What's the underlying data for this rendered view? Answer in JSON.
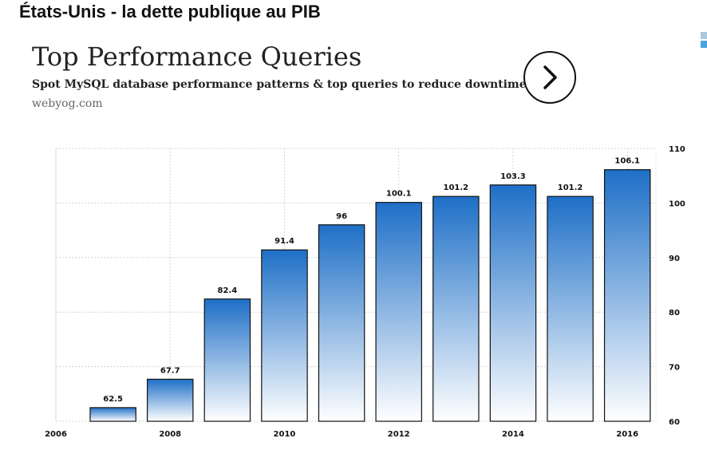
{
  "page": {
    "title": "États-Unis - la dette publique au PIB"
  },
  "ad": {
    "headline": "Top Performance Queries",
    "text": "Spot MySQL database performance patterns & top queries to reduce downtime.",
    "url": "webyog.com",
    "arrow_icon": "chevron-right-icon",
    "choices_icon": "adchoices-icon"
  },
  "colors": {
    "bar_top": "#1e6fc7",
    "bar_bottom": "#ffffff",
    "bar_outline": "#111111",
    "grid": "#d4d4d4"
  },
  "chart_data": {
    "type": "bar",
    "categories": [
      "2007",
      "2008",
      "2009",
      "2010",
      "2011",
      "2012",
      "2013",
      "2014",
      "2015",
      "2016"
    ],
    "values": [
      62.5,
      67.7,
      82.4,
      91.4,
      96,
      100.1,
      101.2,
      103.3,
      101.2,
      106.1
    ],
    "data_labels": [
      "62.5",
      "67.7",
      "82.4",
      "91.4",
      "96",
      "100.1",
      "101.2",
      "103.3",
      "101.2",
      "106.1"
    ],
    "x_ticks": [
      "2006",
      "2008",
      "2010",
      "2012",
      "2014",
      "2016"
    ],
    "xlim": [
      2006,
      2016.5
    ],
    "y_ticks": [
      "60",
      "70",
      "80",
      "90",
      "100",
      "110"
    ],
    "ylim": [
      60,
      110
    ],
    "y_axis_side": "right",
    "grid": true,
    "title": "",
    "xlabel": "",
    "ylabel": ""
  }
}
